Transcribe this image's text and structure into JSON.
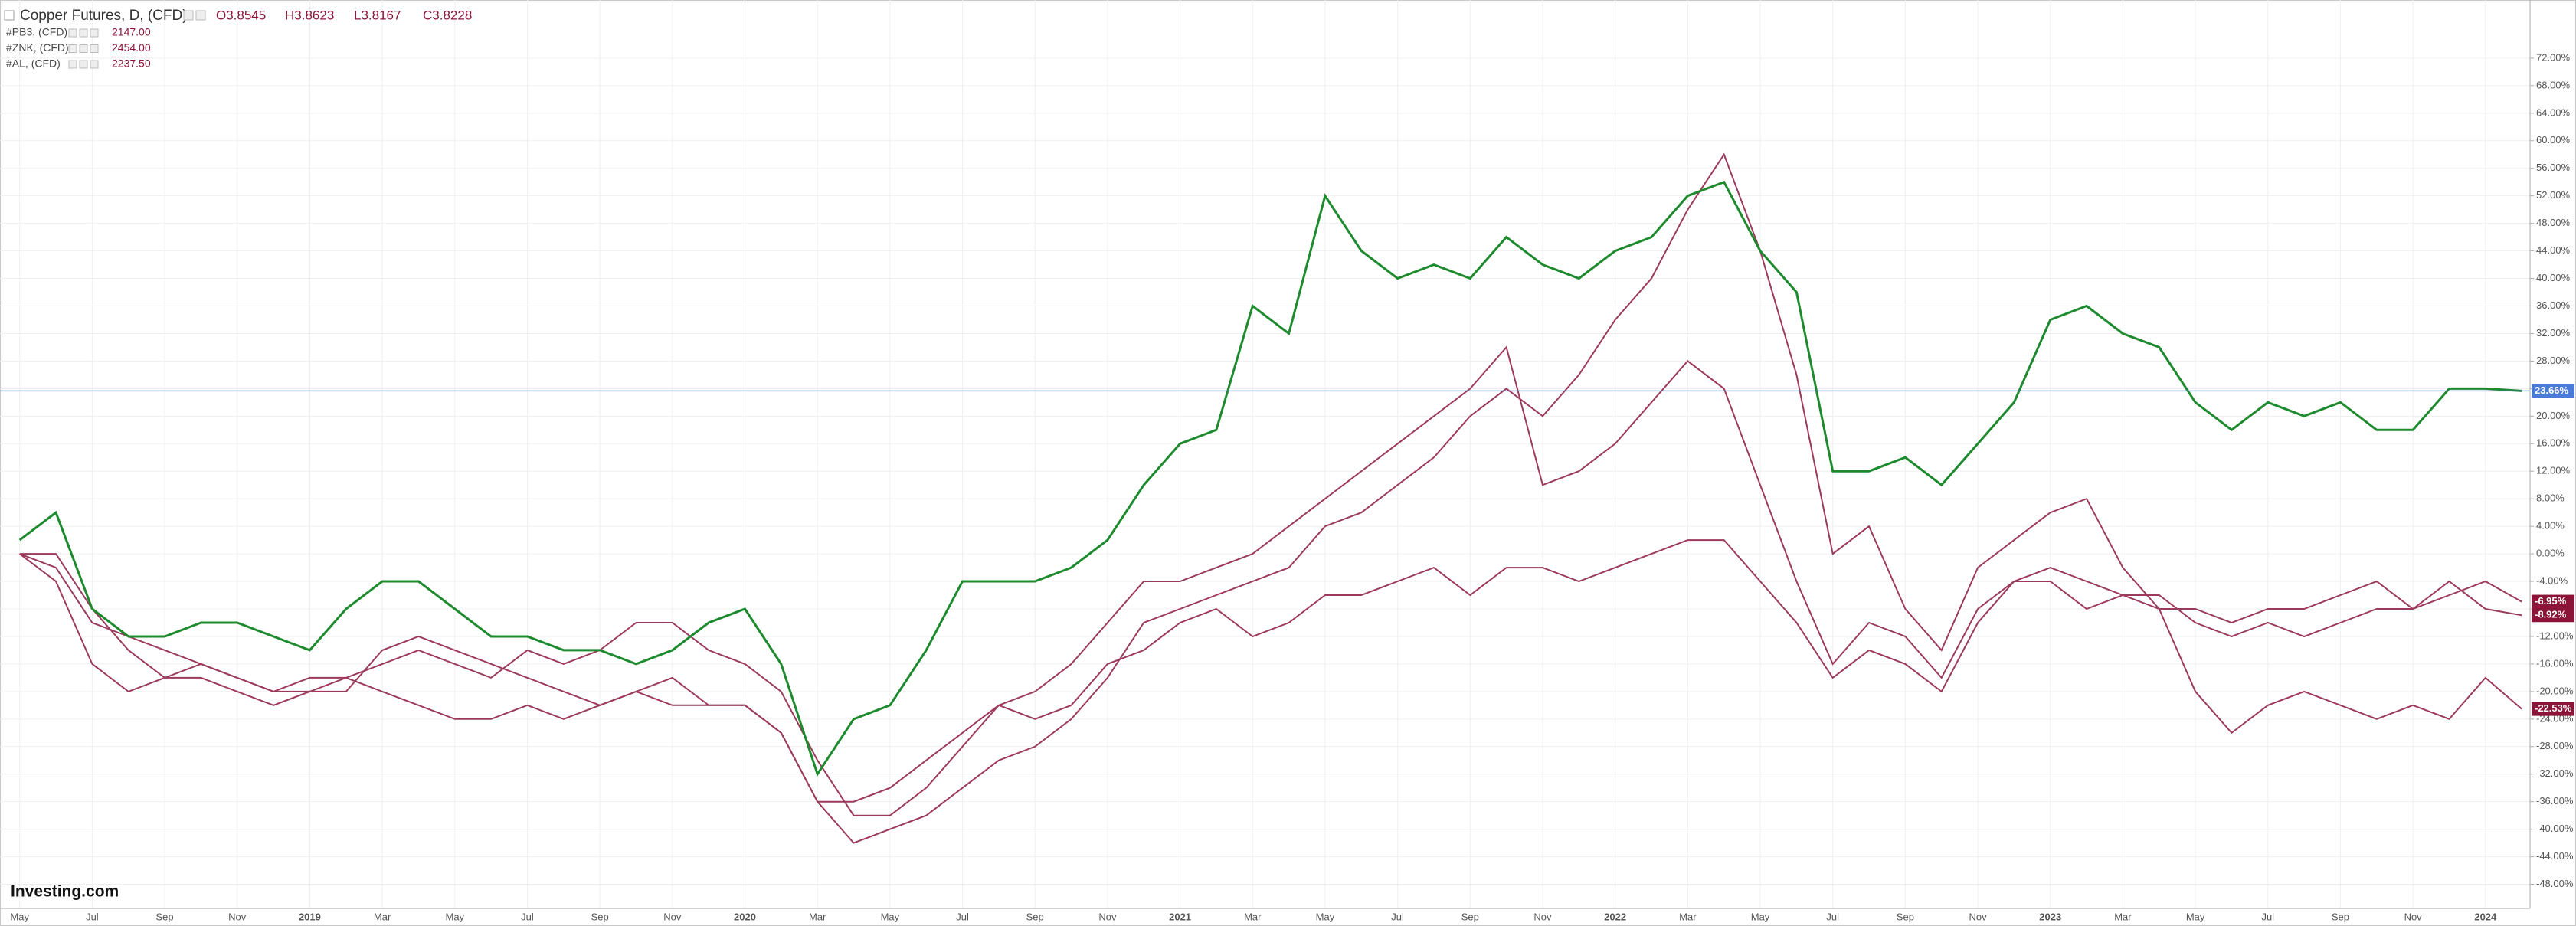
{
  "chart_data": {
    "type": "line",
    "title": "Copper Futures, D, (CFD)",
    "ohlc": [
      "O3.8545",
      "H3.8623",
      "L3.8167",
      "C3.8228"
    ],
    "brand": "Investing.com",
    "categories": [
      "May",
      null,
      "Jul",
      null,
      "Sep",
      null,
      "Nov",
      null,
      "2019",
      null,
      "Mar",
      null,
      "May",
      null,
      "Jul",
      null,
      "Sep",
      null,
      "Nov",
      null,
      "2020",
      null,
      "Mar",
      null,
      "May",
      null,
      "Jul",
      null,
      "Sep",
      null,
      "Nov",
      null,
      "2021",
      null,
      "Mar",
      null,
      "May",
      null,
      "Jul",
      null,
      "Sep",
      null,
      "Nov",
      null,
      "2022",
      null,
      "Mar",
      null,
      "May",
      null,
      "Jul",
      null,
      "Sep",
      null,
      "Nov",
      null,
      "2023",
      null,
      "Mar",
      null,
      "May",
      null,
      "Jul",
      null,
      "Sep",
      null,
      "Nov",
      null,
      "2024",
      null
    ],
    "ylim": [
      -51.5,
      80
    ],
    "yticks": [
      {
        "value": 72,
        "label": "72.00%"
      },
      {
        "value": 68,
        "label": "68.00%"
      },
      {
        "value": 64,
        "label": "64.00%"
      },
      {
        "value": 60,
        "label": "60.00%"
      },
      {
        "value": 56,
        "label": "56.00%"
      },
      {
        "value": 52,
        "label": "52.00%"
      },
      {
        "value": 48,
        "label": "48.00%"
      },
      {
        "value": 44,
        "label": "44.00%"
      },
      {
        "value": 40,
        "label": "40.00%"
      },
      {
        "value": 36,
        "label": "36.00%"
      },
      {
        "value": 32,
        "label": "32.00%"
      },
      {
        "value": 28,
        "label": "28.00%"
      },
      {
        "value": 24,
        "label": "24.00%"
      },
      {
        "value": 20,
        "label": "20.00%"
      },
      {
        "value": 16,
        "label": "16.00%"
      },
      {
        "value": 12,
        "label": "12.00%"
      },
      {
        "value": 8,
        "label": "8.00%"
      },
      {
        "value": 4,
        "label": "4.00%"
      },
      {
        "value": 0,
        "label": "0.00%"
      },
      {
        "value": -4,
        "label": "-4.00%"
      },
      {
        "value": -8,
        "label": "-8.00%"
      },
      {
        "value": -12,
        "label": "-12.00%"
      },
      {
        "value": -16,
        "label": "-16.00%"
      },
      {
        "value": -20,
        "label": "-20.00%"
      },
      {
        "value": -24,
        "label": "-24.00%"
      },
      {
        "value": -28,
        "label": "-28.00%"
      },
      {
        "value": -32,
        "label": "-32.00%"
      },
      {
        "value": -36,
        "label": "-36.00%"
      },
      {
        "value": -40,
        "label": "-40.00%"
      },
      {
        "value": -44,
        "label": "-44.00%"
      },
      {
        "value": -48,
        "label": "-48.00%"
      }
    ],
    "grid": true,
    "series": [
      {
        "name": "Copper Futures, D, (CFD)",
        "color": "#1e8a2e",
        "main": true,
        "last_label": {
          "value": 23.66,
          "label": "23.66%"
        },
        "last_color": "#4a7bd8",
        "values": [
          2,
          6,
          -8,
          -12,
          -12,
          -10,
          -10,
          -12,
          -14,
          -8,
          -4,
          -4,
          -8,
          -12,
          -12,
          -14,
          -14,
          -16,
          -14,
          -10,
          -8,
          -16,
          -32,
          -24,
          -22,
          -14,
          -4,
          -4,
          -4,
          -2,
          2,
          10,
          16,
          18,
          36,
          32,
          52,
          44,
          40,
          42,
          40,
          46,
          42,
          40,
          44,
          46,
          52,
          54,
          44,
          38,
          12,
          12,
          14,
          10,
          16,
          22,
          34,
          36,
          32,
          30,
          22,
          18,
          22,
          20,
          22,
          18,
          18,
          24,
          24,
          23.66
        ]
      },
      {
        "name": "#PB3, (CFD)",
        "price": "2147.00",
        "color": "#9b3a5c",
        "last_label": {
          "value": -6.95,
          "label": "-6.95%"
        },
        "last_color": "#8b1538",
        "values": [
          0,
          0,
          -8,
          -14,
          -18,
          -16,
          -18,
          -20,
          -18,
          -18,
          -20,
          -22,
          -24,
          -24,
          -22,
          -24,
          -22,
          -20,
          -22,
          -22,
          -22,
          -26,
          -36,
          -36,
          -34,
          -30,
          -26,
          -22,
          -24,
          -22,
          -16,
          -14,
          -10,
          -8,
          -12,
          -10,
          -6,
          -6,
          -4,
          -2,
          -6,
          -2,
          -2,
          -4,
          -2,
          0,
          2,
          2,
          -4,
          -10,
          -18,
          -14,
          -16,
          -20,
          -10,
          -4,
          -4,
          -8,
          -6,
          -8,
          -8,
          -10,
          -8,
          -8,
          -6,
          -4,
          -8,
          -6,
          -4,
          -6.95
        ]
      },
      {
        "name": "#ZNK, (CFD)",
        "price": "2454.00",
        "color": "#9b3a5c",
        "last_label": {
          "value": -22.53,
          "label": "-22.53%"
        },
        "last_color": "#8b1538",
        "values": [
          0,
          -4,
          -16,
          -20,
          -18,
          -18,
          -20,
          -22,
          -20,
          -20,
          -14,
          -12,
          -14,
          -16,
          -18,
          -20,
          -22,
          -20,
          -18,
          -22,
          -22,
          -26,
          -36,
          -42,
          -40,
          -38,
          -34,
          -30,
          -28,
          -24,
          -18,
          -10,
          -8,
          -6,
          -4,
          -2,
          4,
          6,
          10,
          14,
          20,
          24,
          20,
          26,
          34,
          40,
          50,
          58,
          44,
          26,
          0,
          4,
          -8,
          -14,
          -2,
          2,
          6,
          8,
          -2,
          -8,
          -20,
          -26,
          -22,
          -20,
          -22,
          -24,
          -22,
          -24,
          -18,
          -22.53
        ]
      },
      {
        "name": "#AL, (CFD)",
        "price": "2237.50",
        "color": "#9b3a5c",
        "last_label": {
          "value": -8.92,
          "label": "-8.92%"
        },
        "last_color": "#8b1538",
        "values": [
          0,
          -2,
          -10,
          -12,
          -14,
          -16,
          -18,
          -20,
          -20,
          -18,
          -16,
          -14,
          -16,
          -18,
          -14,
          -16,
          -14,
          -10,
          -10,
          -14,
          -16,
          -20,
          -30,
          -38,
          -38,
          -34,
          -28,
          -22,
          -20,
          -16,
          -10,
          -4,
          -4,
          -2,
          0,
          4,
          8,
          12,
          16,
          20,
          24,
          30,
          10,
          12,
          16,
          22,
          28,
          24,
          10,
          -4,
          -16,
          -10,
          -12,
          -18,
          -8,
          -4,
          -2,
          -4,
          -6,
          -6,
          -10,
          -12,
          -10,
          -12,
          -10,
          -8,
          -8,
          -4,
          -8,
          -8.92
        ]
      }
    ]
  }
}
